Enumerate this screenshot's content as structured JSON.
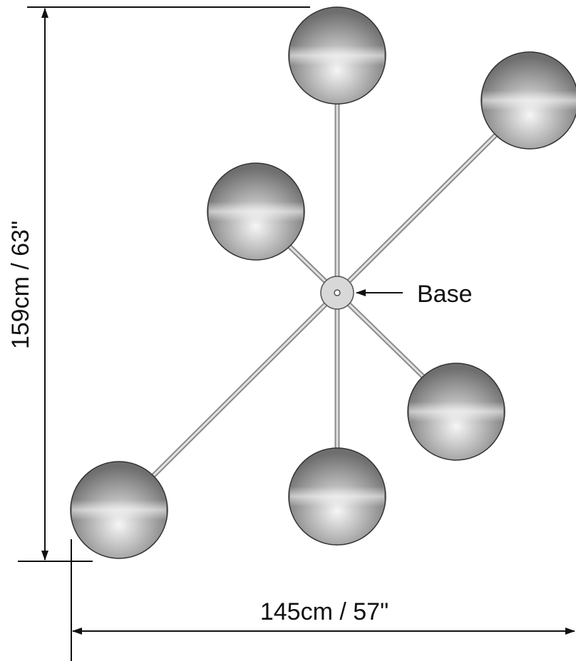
{
  "dimensions": {
    "height": "159cm / 63\"",
    "width": "145cm / 57\""
  },
  "labels": {
    "base": "Base"
  }
}
